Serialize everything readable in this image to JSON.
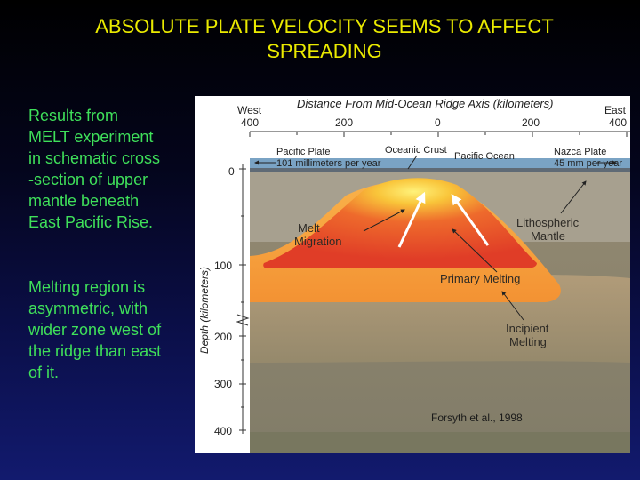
{
  "slide": {
    "title_line1": "ABSOLUTE PLATE VELOCITY SEEMS TO AFFECT",
    "title_line2": "SPREADING",
    "para1": [
      "Results from",
      "MELT experiment",
      "in schematic cross",
      "-section of upper",
      "mantle beneath",
      "East Pacific Rise."
    ],
    "para2": [
      "Melting region is",
      "asymmetric, with",
      "wider zone west of",
      "the ridge than east",
      "of it."
    ]
  },
  "diagram": {
    "top_axis_title": "Distance From Mid-Ocean Ridge Axis (kilometers)",
    "west": "West",
    "east": "East",
    "x_ticks": [
      "400",
      "200",
      "0",
      "200",
      "400"
    ],
    "depth_label": "Depth (kilometers)",
    "depth_ticks": [
      "0",
      "100",
      "200",
      "300",
      "400"
    ],
    "pacific_plate": "Pacific Plate",
    "pacific_rate": "101 millimeters per year",
    "oceanic_crust": "Oceanic Crust",
    "pacific_ocean": "Pacific Ocean",
    "nazca_plate": "Nazca Plate",
    "nazca_rate": "45 mm per year",
    "melt": "Melt",
    "migration": "Migration",
    "lithospheric": "Lithospheric",
    "mantle": "Mantle",
    "primary_melting": "Primary Melting",
    "incipient": "Incipient",
    "melting": "Melting",
    "citation": "Forsyth et al., 1998"
  },
  "colors": {
    "title": "#eaea00",
    "body_text": "#3fe05a",
    "melt_red": "#e8452a",
    "primary_orange": "#f6a03a",
    "lithosphere": "#a89f8e",
    "deep_mantle": "#8c8670",
    "ocean": "#7aa3c4"
  }
}
